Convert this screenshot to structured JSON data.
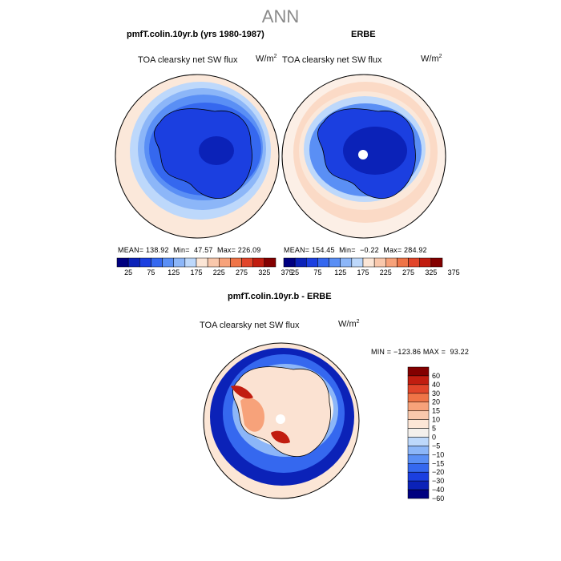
{
  "page_title": "ANN",
  "colors": {
    "blue_scale": [
      "#000080",
      "#0b22b8",
      "#1b3fe0",
      "#3568ef",
      "#5a8ff5",
      "#8cb6f8",
      "#bdd8fb"
    ],
    "red_scale": [
      "#fce6d6",
      "#f9c8ac",
      "#f7a27a",
      "#ef7447",
      "#e1452a",
      "#c11d10",
      "#830000"
    ],
    "neutral": "#f4f0ec"
  },
  "chart_data": [
    {
      "type": "heatmap",
      "panel": "top-left",
      "title": "pmfT.colin.10yr.b (yrs 1980-1987)",
      "variable": "TOA clearsky net SW flux",
      "units": "W/m",
      "units_exp": "2",
      "mean_label": "MEAN=",
      "mean": "138.92",
      "min_label": "Min=",
      "min": "47.57",
      "max_label": "Max=",
      "max": "226.09"
    },
    {
      "type": "heatmap",
      "panel": "top-right",
      "title": "ERBE",
      "variable": "TOA clearsky net SW flux",
      "units": "W/m",
      "units_exp": "2",
      "mean_label": "MEAN=",
      "mean": "154.45",
      "min_label": "Min=",
      "min": "−0.22",
      "max_label": "Max=",
      "max": "284.92"
    },
    {
      "type": "heatmap",
      "panel": "bottom",
      "title": "pmfT.colin.10yr.b - ERBE",
      "variable": "TOA clearsky net SW flux",
      "units": "W/m",
      "units_exp": "2",
      "min_label": "MIN =",
      "min": "−123.86",
      "max_label": "MAX =",
      "max": "93.22"
    }
  ],
  "colorbar_top": {
    "levels": [
      "25",
      "75",
      "125",
      "175",
      "225",
      "275",
      "325",
      "375"
    ]
  },
  "colorbar_diff": {
    "levels": [
      "60",
      "40",
      "30",
      "20",
      "15",
      "10",
      "5",
      "0",
      "−5",
      "−10",
      "−15",
      "−20",
      "−30",
      "−40",
      "−60"
    ]
  }
}
